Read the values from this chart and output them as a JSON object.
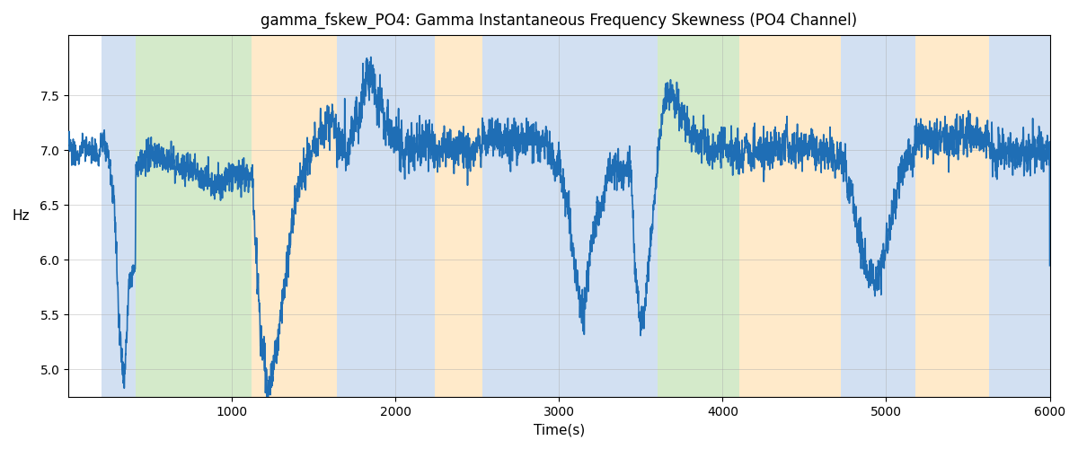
{
  "title": "gamma_fskew_PO4: Gamma Instantaneous Frequency Skewness (PO4 Channel)",
  "xlabel": "Time(s)",
  "ylabel": "Hz",
  "xlim": [
    0,
    6000
  ],
  "ylim": [
    4.75,
    8.05
  ],
  "yticks": [
    5.0,
    5.5,
    6.0,
    6.5,
    7.0,
    7.5
  ],
  "xticks": [
    1000,
    2000,
    3000,
    4000,
    5000,
    6000
  ],
  "line_color": "#1f6eb5",
  "line_width": 1.2,
  "background_color": "#ffffff",
  "grid_color": "#aaaaaa",
  "bands": [
    {
      "start": 200,
      "end": 410,
      "color": "#adc8e8",
      "alpha": 0.55
    },
    {
      "start": 410,
      "end": 1120,
      "color": "#b2d9a0",
      "alpha": 0.55
    },
    {
      "start": 1120,
      "end": 1640,
      "color": "#ffd9a0",
      "alpha": 0.55
    },
    {
      "start": 1640,
      "end": 2240,
      "color": "#adc8e8",
      "alpha": 0.55
    },
    {
      "start": 2240,
      "end": 2530,
      "color": "#ffd9a0",
      "alpha": 0.55
    },
    {
      "start": 2530,
      "end": 3440,
      "color": "#adc8e8",
      "alpha": 0.55
    },
    {
      "start": 3440,
      "end": 3600,
      "color": "#adc8e8",
      "alpha": 0.55
    },
    {
      "start": 3600,
      "end": 4100,
      "color": "#b2d9a0",
      "alpha": 0.55
    },
    {
      "start": 4100,
      "end": 4720,
      "color": "#ffd9a0",
      "alpha": 0.55
    },
    {
      "start": 4720,
      "end": 5180,
      "color": "#adc8e8",
      "alpha": 0.55
    },
    {
      "start": 5180,
      "end": 5630,
      "color": "#ffd9a0",
      "alpha": 0.55
    },
    {
      "start": 5630,
      "end": 6000,
      "color": "#adc8e8",
      "alpha": 0.55
    }
  ],
  "figsize": [
    12.0,
    5.0
  ],
  "dpi": 100
}
